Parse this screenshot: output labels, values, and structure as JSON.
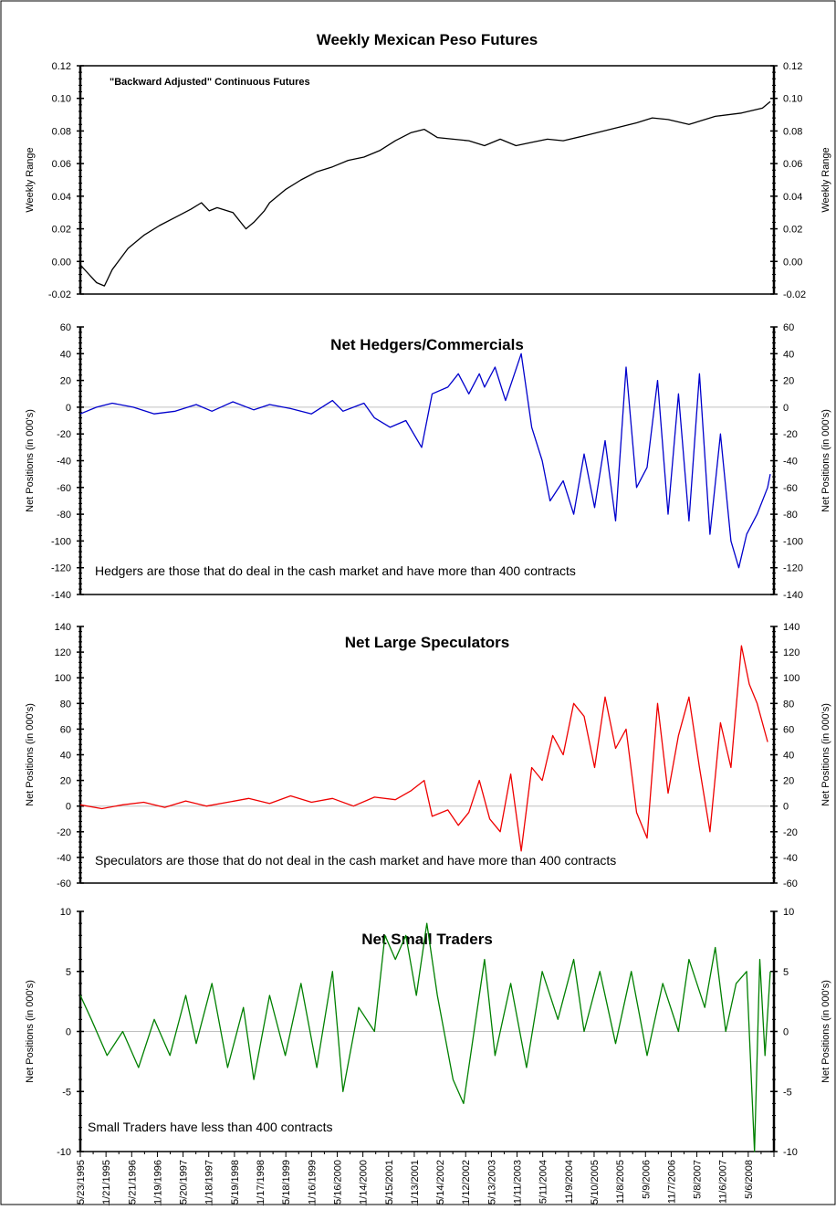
{
  "chart_data": [
    {
      "type": "line",
      "title": "Weekly Mexican Peso Futures",
      "annotation": "\"Backward Adjusted\" Continuous Futures",
      "ylabel": "Weekly Range",
      "ylabel_right": "Weekly Range",
      "ylim": [
        -0.02,
        0.12
      ],
      "yticks": [
        "-0.02",
        "0.00",
        "0.02",
        "0.04",
        "0.06",
        "0.08",
        "0.10",
        "0.12"
      ],
      "series": [
        {
          "color": "#000000",
          "x": [
            1995.39,
            1995.5,
            1995.7,
            1995.85,
            1996.0,
            1996.3,
            1996.6,
            1996.9,
            1997.2,
            1997.5,
            1997.7,
            1997.85,
            1998.0,
            1998.3,
            1998.55,
            1998.7,
            1998.9,
            1999.0,
            1999.3,
            1999.6,
            1999.9,
            2000.2,
            2000.5,
            2000.8,
            2001.1,
            2001.4,
            2001.7,
            2001.95,
            2002.2,
            2002.5,
            2002.8,
            2003.1,
            2003.4,
            2003.7,
            2004.0,
            2004.3,
            2004.6,
            2005.0,
            2005.5,
            2006.0,
            2006.3,
            2006.6,
            2007.0,
            2007.5,
            2008.0,
            2008.4,
            2008.55
          ],
          "values": [
            -0.002,
            -0.006,
            -0.013,
            -0.015,
            -0.005,
            0.008,
            0.016,
            0.022,
            0.027,
            0.032,
            0.036,
            0.031,
            0.033,
            0.03,
            0.02,
            0.024,
            0.031,
            0.036,
            0.044,
            0.05,
            0.055,
            0.058,
            0.062,
            0.064,
            0.068,
            0.074,
            0.079,
            0.081,
            0.076,
            0.075,
            0.074,
            0.071,
            0.075,
            0.071,
            0.073,
            0.075,
            0.074,
            0.077,
            0.081,
            0.085,
            0.088,
            0.087,
            0.084,
            0.089,
            0.091,
            0.094,
            0.098
          ]
        }
      ]
    },
    {
      "type": "line",
      "title": "Net Hedgers/Commercials",
      "annotation": "Hedgers are those that do deal in the cash market and have more than 400 contracts",
      "ylabel": "Net Positions (in 000's)",
      "ylabel_right": "Net Positions (in 000's)",
      "ylim": [
        -140,
        60
      ],
      "yticks": [
        "-140",
        "-120",
        "-100",
        "-80",
        "-60",
        "-40",
        "-20",
        "0",
        "20",
        "40",
        "60"
      ],
      "series": [
        {
          "color": "#0000cc",
          "x": [
            1995.39,
            1995.7,
            1996.0,
            1996.4,
            1996.8,
            1997.2,
            1997.6,
            1997.9,
            1998.3,
            1998.7,
            1999.0,
            1999.4,
            1999.8,
            2000.2,
            2000.4,
            2000.8,
            2001.0,
            2001.3,
            2001.6,
            2001.9,
            2002.1,
            2002.4,
            2002.6,
            2002.8,
            2003.0,
            2003.1,
            2003.3,
            2003.5,
            2003.8,
            2004.0,
            2004.2,
            2004.35,
            2004.6,
            2004.8,
            2005.0,
            2005.2,
            2005.4,
            2005.6,
            2005.8,
            2006.0,
            2006.2,
            2006.4,
            2006.6,
            2006.8,
            2007.0,
            2007.2,
            2007.4,
            2007.6,
            2007.8,
            2007.95,
            2008.1,
            2008.3,
            2008.5,
            2008.55
          ],
          "values": [
            -5,
            0,
            3,
            0,
            -5,
            -3,
            2,
            -3,
            4,
            -2,
            2,
            -1,
            -5,
            5,
            -3,
            3,
            -8,
            -15,
            -10,
            -30,
            10,
            15,
            25,
            10,
            25,
            15,
            30,
            5,
            40,
            -15,
            -40,
            -70,
            -55,
            -80,
            -35,
            -75,
            -25,
            -85,
            30,
            -60,
            -45,
            20,
            -80,
            10,
            -85,
            25,
            -95,
            -20,
            -100,
            -120,
            -95,
            -80,
            -60,
            -50
          ]
        }
      ]
    },
    {
      "type": "line",
      "title": "Net Large Speculators",
      "annotation": "Speculators are those that do not deal in the cash market and have more than 400 contracts",
      "ylabel": "Net Positions (in 000's)",
      "ylabel_right": "Net Positions (in 000's)",
      "ylim": [
        -60,
        140
      ],
      "yticks": [
        "-60",
        "-40",
        "-20",
        "0",
        "20",
        "40",
        "60",
        "80",
        "100",
        "120",
        "140"
      ],
      "series": [
        {
          "color": "#ee0000",
          "x": [
            1995.39,
            1995.8,
            1996.2,
            1996.6,
            1997.0,
            1997.4,
            1997.8,
            1998.2,
            1998.6,
            1999.0,
            1999.4,
            1999.8,
            2000.2,
            2000.6,
            2001.0,
            2001.4,
            2001.7,
            2001.95,
            2002.1,
            2002.4,
            2002.6,
            2002.8,
            2003.0,
            2003.2,
            2003.4,
            2003.6,
            2003.8,
            2004.0,
            2004.2,
            2004.4,
            2004.6,
            2004.8,
            2005.0,
            2005.2,
            2005.4,
            2005.6,
            2005.8,
            2006.0,
            2006.2,
            2006.4,
            2006.6,
            2006.8,
            2007.0,
            2007.2,
            2007.4,
            2007.6,
            2007.8,
            2008.0,
            2008.15,
            2008.3,
            2008.5
          ],
          "values": [
            1,
            -2,
            1,
            3,
            -1,
            4,
            0,
            3,
            6,
            2,
            8,
            3,
            6,
            0,
            7,
            5,
            12,
            20,
            -8,
            -3,
            -15,
            -5,
            20,
            -10,
            -20,
            25,
            -35,
            30,
            20,
            55,
            40,
            80,
            70,
            30,
            85,
            45,
            60,
            -5,
            -25,
            80,
            10,
            55,
            85,
            30,
            -20,
            65,
            30,
            125,
            95,
            80,
            50
          ]
        }
      ]
    },
    {
      "type": "line",
      "title": "Net Small Traders",
      "annotation": "Small Traders have less than 400 contracts",
      "ylabel": "Net Positions (in 000's)",
      "ylabel_right": "Net Positions (in 000's)",
      "ylim": [
        -10,
        10
      ],
      "yticks": [
        "-10",
        "-5",
        "0",
        "5",
        "10"
      ],
      "xticks": [
        "5/23/1995",
        "11/21/1995",
        "5/21/1996",
        "11/19/1996",
        "5/20/1997",
        "11/18/1997",
        "5/19/1998",
        "11/17/1998",
        "5/18/1999",
        "11/16/1999",
        "5/16/2000",
        "11/14/2000",
        "5/15/2001",
        "11/13/2001",
        "5/14/2002",
        "11/12/2002",
        "5/13/2003",
        "11/11/2003",
        "5/11/2004",
        "11/9/2004",
        "5/10/2005",
        "11/8/2005",
        "5/9/2006",
        "11/7/2006",
        "5/8/2007",
        "11/6/2007",
        "5/6/2008"
      ],
      "series": [
        {
          "color": "#008000",
          "x": [
            1995.39,
            1995.6,
            1995.9,
            1996.2,
            1996.5,
            1996.8,
            1997.1,
            1997.4,
            1997.6,
            1997.9,
            1998.2,
            1998.5,
            1998.7,
            1999.0,
            1999.3,
            1999.6,
            1999.9,
            2000.2,
            2000.4,
            2000.7,
            2001.0,
            2001.2,
            2001.4,
            2001.6,
            2001.8,
            2002.0,
            2002.2,
            2002.5,
            2002.7,
            2002.9,
            2003.1,
            2003.3,
            2003.6,
            2003.9,
            2004.2,
            2004.5,
            2004.8,
            2005.0,
            2005.3,
            2005.6,
            2005.9,
            2006.2,
            2006.5,
            2006.8,
            2007.0,
            2007.3,
            2007.5,
            2007.7,
            2007.9,
            2008.1,
            2008.25,
            2008.35,
            2008.45,
            2008.55
          ],
          "values": [
            3,
            1,
            -2,
            0,
            -3,
            1,
            -2,
            3,
            -1,
            4,
            -3,
            2,
            -4,
            3,
            -2,
            4,
            -3,
            5,
            -5,
            2,
            0,
            8,
            6,
            8,
            3,
            9,
            3,
            -4,
            -6,
            0,
            6,
            -2,
            4,
            -3,
            5,
            1,
            6,
            0,
            5,
            -1,
            5,
            -2,
            4,
            0,
            6,
            2,
            7,
            0,
            4,
            5,
            -10,
            6,
            -2,
            5
          ]
        }
      ]
    }
  ]
}
